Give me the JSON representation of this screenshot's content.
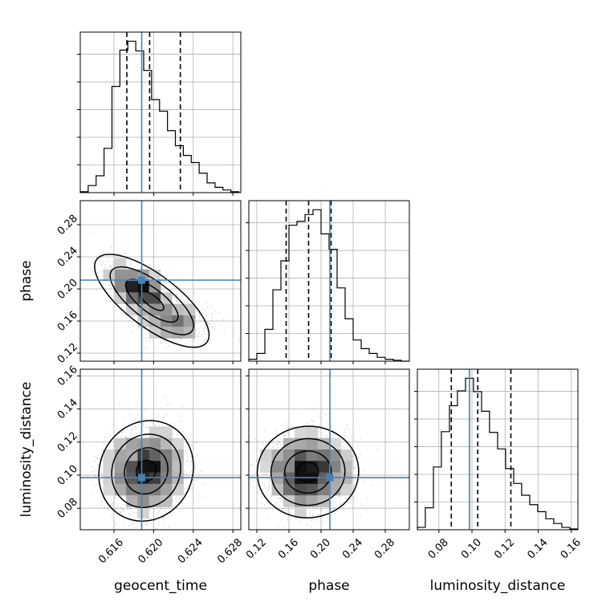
{
  "colors": {
    "truth": "#4682b4",
    "hist_line": "#000000",
    "grid": "#b0b0b0",
    "scatter": "#9a9a9a",
    "density_low": "#d8d8d8",
    "density_high": "#111111"
  },
  "chart_data": {
    "type": "corner",
    "parameters": [
      "geocent_time",
      "phase",
      "luminosity_distance"
    ],
    "truths": {
      "geocent_time": 0.6188,
      "phase": 0.211,
      "luminosity_distance": 0.0985
    },
    "ranges": {
      "geocent_time": [
        0.6126,
        0.6288
      ],
      "phase": [
        0.11,
        0.31
      ],
      "luminosity_distance": [
        0.067,
        0.164
      ]
    },
    "ticks": {
      "geocent_time": [
        "0.616",
        "0.620",
        "0.624",
        "0.628"
      ],
      "phase": [
        "0.12",
        "0.16",
        "0.20",
        "0.24",
        "0.28"
      ],
      "luminosity_distance": [
        "0.08",
        "0.10",
        "0.12",
        "0.14",
        "0.16"
      ]
    },
    "grid": true,
    "quantile_lines": {
      "geocent_time": [
        0.6173,
        0.6196,
        0.6227
      ],
      "phase": [
        0.1565,
        0.1845,
        0.2125
      ],
      "luminosity_distance": [
        0.0875,
        0.1035,
        0.1235
      ]
    },
    "hist1d": {
      "geocent_time": {
        "edges": [
          0.6126,
          0.6134,
          0.6142,
          0.615,
          0.6158,
          0.6166,
          0.6174,
          0.6182,
          0.619,
          0.6198,
          0.6206,
          0.6214,
          0.6222,
          0.623,
          0.6238,
          0.6246,
          0.6254,
          0.6262,
          0.627,
          0.6278,
          0.6286
        ],
        "counts": [
          1,
          8,
          19,
          50,
          120,
          161,
          171,
          160,
          138,
          105,
          92,
          70,
          53,
          42,
          34,
          22,
          11,
          6,
          3,
          1
        ]
      },
      "phase": {
        "edges": [
          0.11,
          0.12,
          0.13,
          0.14,
          0.15,
          0.16,
          0.17,
          0.18,
          0.19,
          0.2,
          0.21,
          0.22,
          0.23,
          0.24,
          0.25,
          0.26,
          0.27,
          0.28,
          0.29,
          0.3,
          0.31
        ],
        "counts": [
          2,
          8,
          33,
          74,
          104,
          141,
          145,
          152,
          157,
          132,
          116,
          76,
          44,
          22,
          13,
          8,
          4,
          2,
          1,
          0
        ]
      },
      "luminosity_distance": {
        "edges": [
          0.067,
          0.0718,
          0.0767,
          0.0815,
          0.0864,
          0.0912,
          0.0961,
          0.1009,
          0.1058,
          0.1106,
          0.1155,
          0.1203,
          0.1252,
          0.13,
          0.1349,
          0.1397,
          0.1446,
          0.1494,
          0.1543,
          0.1591,
          0.164
        ],
        "counts": [
          3,
          28,
          80,
          125,
          158,
          177,
          193,
          176,
          151,
          124,
          103,
          78,
          59,
          44,
          32,
          23,
          14,
          8,
          3,
          1
        ]
      }
    },
    "joint": [
      {
        "x": "geocent_time",
        "y": "phase",
        "mean": [
          0.6186,
          0.199
        ],
        "sd": [
          0.0016,
          0.0155
        ],
        "rho": -0.55,
        "tail": {
          "mean": [
            0.6222,
            0.159
          ],
          "sd": [
            0.0018,
            0.012
          ],
          "weight": 0.35
        },
        "n_points": 1600,
        "seed": 11
      },
      {
        "x": "geocent_time",
        "y": "luminosity_distance",
        "mean": [
          0.6192,
          0.102
        ],
        "sd": [
          0.002,
          0.0125
        ],
        "rho": 0.05,
        "n_points": 1700,
        "seed": 23
      },
      {
        "x": "phase",
        "y": "luminosity_distance",
        "mean": [
          0.183,
          0.102
        ],
        "sd": [
          0.026,
          0.0115
        ],
        "rho": 0.0,
        "n_points": 1700,
        "seed": 37
      }
    ]
  }
}
